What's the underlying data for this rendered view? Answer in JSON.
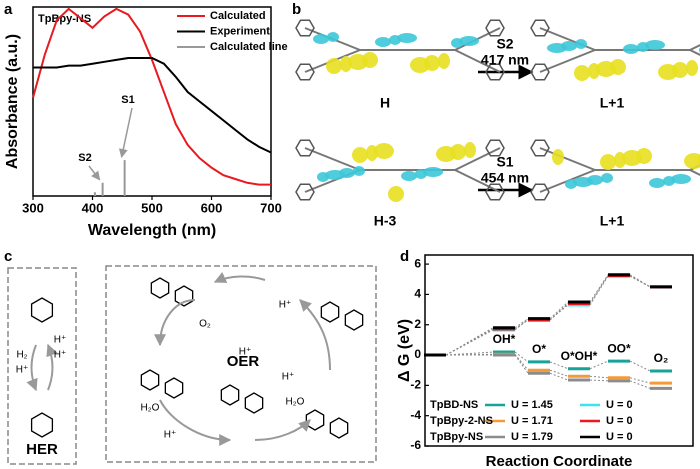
{
  "panel_letters": [
    "a",
    "b",
    "c",
    "d"
  ],
  "chart_data": [
    {
      "type": "line",
      "annotation": "TpBpy-NS",
      "xlabel": "Wavelength (nm)",
      "ylabel": "Absorbance (a.u.)",
      "xlim": [
        300,
        700
      ],
      "xticks": [
        300,
        400,
        500,
        600,
        700
      ],
      "ylim": [
        0,
        1
      ],
      "legend": "upper right",
      "series": [
        {
          "name": "Calculated",
          "color": "#e8191f",
          "style": "line",
          "x": [
            300,
            320,
            340,
            360,
            380,
            400,
            420,
            440,
            460,
            480,
            500,
            520,
            540,
            560,
            580,
            600,
            620,
            640,
            660,
            680,
            700
          ],
          "values": [
            0.52,
            0.75,
            0.93,
            0.99,
            0.94,
            0.89,
            0.95,
            0.99,
            0.96,
            0.87,
            0.72,
            0.55,
            0.38,
            0.27,
            0.2,
            0.15,
            0.11,
            0.09,
            0.07,
            0.06,
            0.06
          ]
        },
        {
          "name": "Experiment",
          "color": "#000000",
          "style": "line",
          "x": [
            300,
            320,
            340,
            360,
            380,
            400,
            420,
            440,
            460,
            480,
            500,
            520,
            540,
            560,
            580,
            600,
            620,
            640,
            660,
            680,
            700
          ],
          "values": [
            0.68,
            0.68,
            0.68,
            0.69,
            0.69,
            0.7,
            0.71,
            0.72,
            0.73,
            0.73,
            0.73,
            0.7,
            0.63,
            0.55,
            0.5,
            0.45,
            0.4,
            0.35,
            0.3,
            0.26,
            0.23
          ]
        },
        {
          "name": "Calculated line",
          "color": "#999999",
          "style": "stick",
          "x": [
            404,
            417,
            454
          ],
          "values": [
            0.02,
            0.07,
            0.19
          ]
        }
      ],
      "annotations": [
        "S2",
        "S1"
      ]
    },
    {
      "type": "energy",
      "xlabel": "Reaction Coordinate",
      "ylabel": "Δ G (eV)",
      "categories": [
        null,
        "OH*",
        "O*",
        "O*OH*",
        "OO*",
        "O₂"
      ],
      "ylim": [
        -6,
        6.6
      ],
      "yticks": [
        -6,
        -4,
        -2,
        0,
        2,
        4,
        6
      ],
      "series": [
        {
          "name": "TpBD-NS",
          "levels": [
            {
              "label": "U = 1.45",
              "color": "#17a398",
              "values": [
                0,
                0.2,
                -0.45,
                -0.9,
                -0.4,
                -1.05
              ]
            },
            {
              "label": "U = 0",
              "color": "#3fe3f0",
              "values": [
                0,
                1.65,
                2.35,
                3.3,
                5.2,
                4.5
              ]
            }
          ]
        },
        {
          "name": "TpBpy-2-NS",
          "levels": [
            {
              "label": "U = 1.71",
              "color": "#f39b3b",
              "values": [
                0,
                0.05,
                -1.0,
                -1.4,
                -1.5,
                -1.85
              ]
            },
            {
              "label": "U = 0",
              "color": "#e8191f",
              "values": [
                0,
                1.72,
                2.3,
                3.4,
                5.25,
                4.5
              ]
            }
          ]
        },
        {
          "name": "TpBpy-NS",
          "levels": [
            {
              "label": "U = 1.79",
              "color": "#8c8c8c",
              "values": [
                0,
                0,
                -1.2,
                -1.65,
                -1.7,
                -2.2
              ]
            },
            {
              "label": "U = 0",
              "color": "#000000",
              "values": [
                0,
                1.8,
                2.4,
                3.5,
                5.3,
                4.5
              ]
            }
          ]
        }
      ]
    }
  ],
  "panel_b": {
    "transitions": [
      {
        "state": "S2",
        "wavelength": "417 nm",
        "from": "H",
        "to": "L+1"
      },
      {
        "state": "S1",
        "wavelength": "454 nm",
        "from": "H-3",
        "to": "L+1"
      }
    ]
  },
  "panel_c": {
    "her": {
      "title": "HER",
      "labels": [
        "H₂",
        "H⁺",
        "H⁺",
        "H⁺"
      ]
    },
    "oer": {
      "title": "OER",
      "labels": [
        "O₂",
        "H⁺",
        "H₂O",
        "H⁺",
        "H₂O",
        "H⁺",
        "H⁺"
      ]
    }
  }
}
